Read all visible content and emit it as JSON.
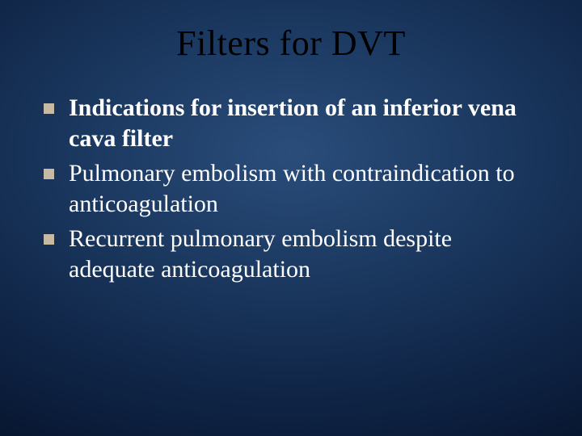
{
  "slide": {
    "title": "Filters for DVT",
    "title_color": "#000000",
    "title_fontsize": 44,
    "body_color": "#ffffff",
    "body_fontsize": 30,
    "bullet_marker_color": "#c7baa4",
    "background_gradient": {
      "type": "radial",
      "center": "50% 35%",
      "stops": [
        {
          "color": "#2a4d7a",
          "at": "0%"
        },
        {
          "color": "#1c3a62",
          "at": "30%"
        },
        {
          "color": "#12294c",
          "at": "55%"
        },
        {
          "color": "#0a1b38",
          "at": "78%"
        },
        {
          "color": "#040d1f",
          "at": "100%"
        }
      ]
    },
    "bullets": [
      {
        "text": "Indications for insertion of an inferior vena cava filter",
        "bold": true
      },
      {
        "text": "Pulmonary embolism with contraindication to anticoagulation",
        "bold": false
      },
      {
        "text": "Recurrent pulmonary embolism despite adequate anticoagulation",
        "bold": false
      }
    ]
  }
}
